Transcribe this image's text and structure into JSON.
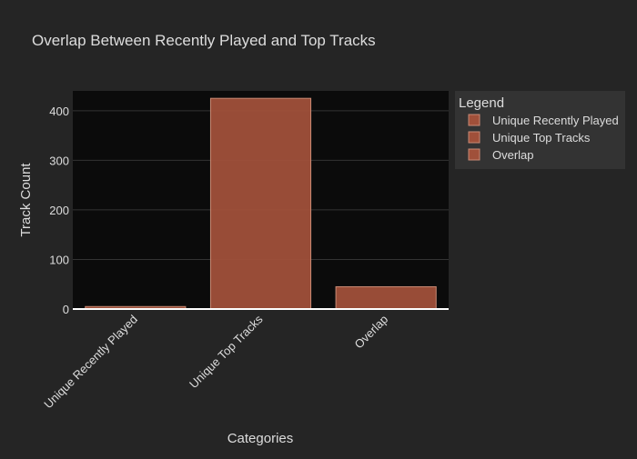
{
  "chart_data": {
    "type": "bar",
    "title": "Overlap Between Recently Played and Top Tracks",
    "xlabel": "Categories",
    "ylabel": "Track Count",
    "categories": [
      "Unique Recently Played",
      "Unique Top Tracks",
      "Overlap"
    ],
    "values": [
      5,
      425,
      45
    ],
    "ylim": [
      0,
      440
    ],
    "yticks": [
      0,
      100,
      200,
      300,
      400
    ],
    "grid": true,
    "legend": {
      "title": "Legend",
      "placement": "top-right",
      "entries": [
        "Unique Recently Played",
        "Unique Top Tracks",
        "Overlap"
      ]
    },
    "colors": {
      "page_background": "#252525",
      "plot_background": "#0b0b0b",
      "bar_fill": "#a0503a",
      "bar_stroke": "#c98a75",
      "gridline": "#333333",
      "zero_line": "#ffffff",
      "text": "#dddddd",
      "legend_background": "#333333"
    }
  }
}
